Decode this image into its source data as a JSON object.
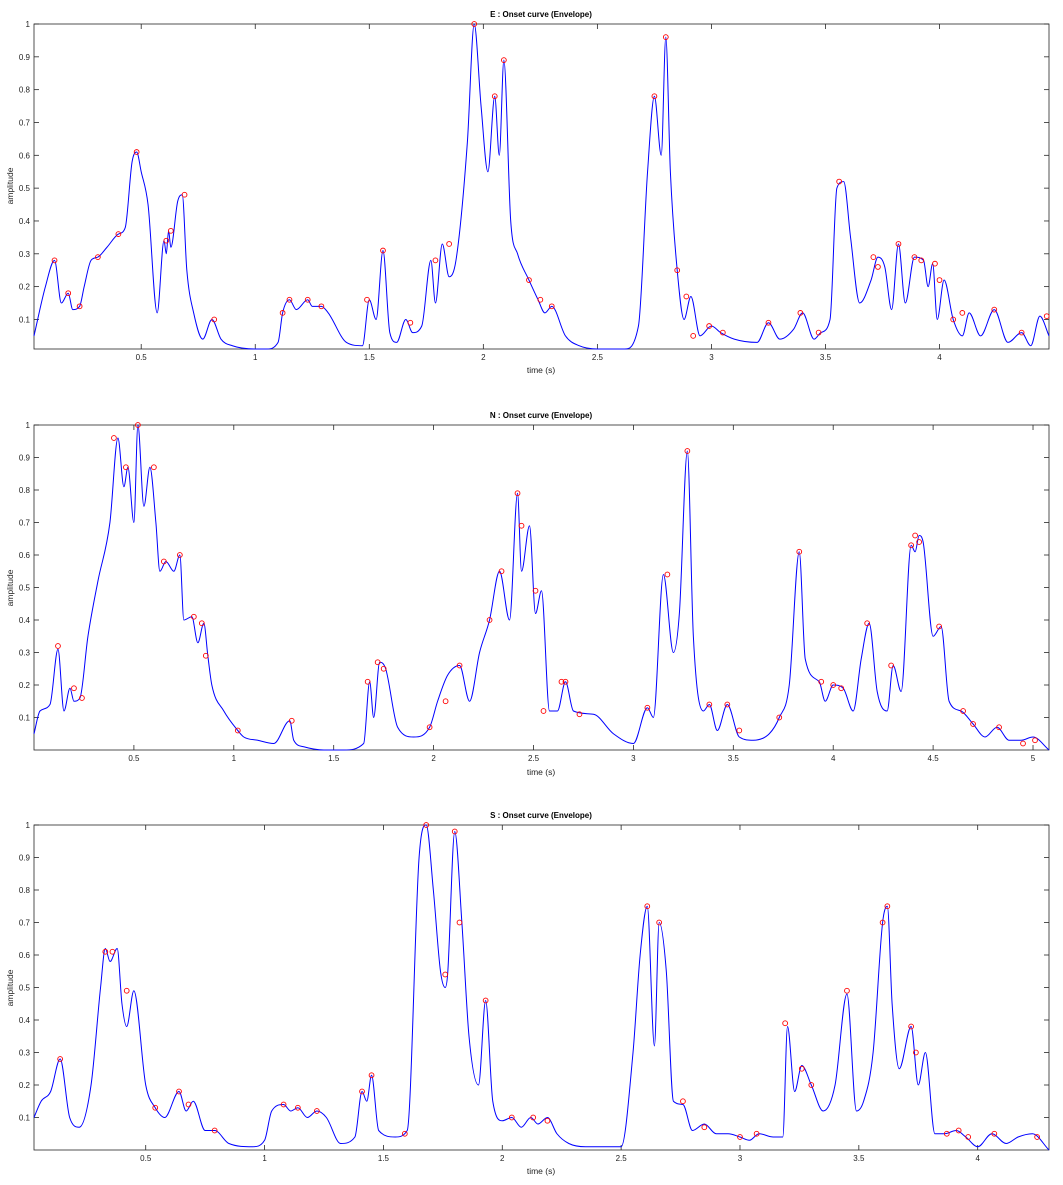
{
  "figure": {
    "background": "#ffffff",
    "line_color": "#0000ff",
    "marker_color": "#ff0000"
  },
  "chart_data": [
    {
      "type": "line",
      "title": "E : Onset curve (Envelope)",
      "xlabel": "time (s)",
      "ylabel": "amplitude",
      "xlim": [
        0.03,
        4.48
      ],
      "ylim": [
        0.01,
        1.0
      ],
      "xticks": [
        0.5,
        1,
        1.5,
        2,
        2.5,
        3,
        3.5,
        4
      ],
      "xticklabels": [
        "0.5",
        "1",
        "1.5",
        "2",
        "2.5",
        "3",
        "3.5",
        "4"
      ],
      "yticks": [
        0.1,
        0.2,
        0.3,
        0.4,
        0.5,
        0.6,
        0.7,
        0.8,
        0.9,
        1
      ],
      "yticklabels": [
        "0.1",
        "0.2",
        "0.3",
        "0.4",
        "0.5",
        "0.6",
        "0.7",
        "0.8",
        "0.9",
        "1"
      ],
      "grid": false,
      "series": [
        {
          "x": [
            0.03,
            0.08,
            0.12,
            0.15,
            0.18,
            0.2,
            0.23,
            0.25,
            0.28,
            0.31,
            0.35,
            0.4,
            0.43,
            0.46,
            0.48,
            0.5,
            0.53,
            0.57,
            0.6,
            0.61,
            0.62,
            0.63,
            0.66,
            0.68,
            0.7,
            0.73,
            0.77,
            0.81,
            0.85,
            0.9,
            1.0,
            1.05,
            1.1,
            1.12,
            1.15,
            1.18,
            1.23,
            1.25,
            1.29,
            1.32,
            1.4,
            1.47,
            1.5,
            1.53,
            1.56,
            1.59,
            1.62,
            1.66,
            1.69,
            1.73,
            1.77,
            1.79,
            1.82,
            1.85,
            1.88,
            1.93,
            1.96,
            1.99,
            2.02,
            2.05,
            2.07,
            2.09,
            2.12,
            2.15,
            2.2,
            2.24,
            2.27,
            2.3,
            2.36,
            2.42,
            2.5,
            2.62,
            2.68,
            2.72,
            2.75,
            2.78,
            2.8,
            2.82,
            2.85,
            2.88,
            2.91,
            2.95,
            3.0,
            3.04,
            3.1,
            3.2,
            3.25,
            3.3,
            3.36,
            3.4,
            3.45,
            3.48,
            3.52,
            3.55,
            3.58,
            3.61,
            3.65,
            3.7,
            3.73,
            3.76,
            3.79,
            3.82,
            3.85,
            3.89,
            3.93,
            3.95,
            3.97,
            3.99,
            4.02,
            4.06,
            4.1,
            4.13,
            4.18,
            4.24,
            4.3,
            4.36,
            4.4,
            4.44,
            4.48
          ],
          "y": [
            0.05,
            0.2,
            0.28,
            0.15,
            0.18,
            0.13,
            0.14,
            0.2,
            0.28,
            0.29,
            0.32,
            0.36,
            0.38,
            0.58,
            0.61,
            0.55,
            0.45,
            0.12,
            0.34,
            0.3,
            0.37,
            0.32,
            0.46,
            0.48,
            0.25,
            0.12,
            0.04,
            0.1,
            0.04,
            0.02,
            0.01,
            0.01,
            0.03,
            0.12,
            0.16,
            0.13,
            0.16,
            0.14,
            0.14,
            0.12,
            0.03,
            0.02,
            0.16,
            0.1,
            0.31,
            0.06,
            0.03,
            0.1,
            0.06,
            0.08,
            0.28,
            0.15,
            0.33,
            0.23,
            0.28,
            0.64,
            1.0,
            0.75,
            0.55,
            0.78,
            0.6,
            0.89,
            0.4,
            0.3,
            0.22,
            0.16,
            0.12,
            0.14,
            0.05,
            0.02,
            0.01,
            0.01,
            0.08,
            0.55,
            0.78,
            0.6,
            0.96,
            0.55,
            0.25,
            0.1,
            0.17,
            0.05,
            0.08,
            0.06,
            0.04,
            0.03,
            0.09,
            0.04,
            0.07,
            0.12,
            0.04,
            0.06,
            0.1,
            0.5,
            0.52,
            0.35,
            0.15,
            0.22,
            0.29,
            0.26,
            0.13,
            0.33,
            0.15,
            0.29,
            0.28,
            0.2,
            0.27,
            0.1,
            0.22,
            0.1,
            0.05,
            0.12,
            0.05,
            0.13,
            0.03,
            0.06,
            0.02,
            0.11,
            0.05
          ]
        }
      ],
      "peaks": {
        "x": [
          0.12,
          0.18,
          0.23,
          0.31,
          0.4,
          0.48,
          0.61,
          0.63,
          0.69,
          0.82,
          1.12,
          1.15,
          1.23,
          1.29,
          1.49,
          1.56,
          1.68,
          1.79,
          1.85,
          1.96,
          2.05,
          2.09,
          2.2,
          2.25,
          2.3,
          2.75,
          2.8,
          2.85,
          2.89,
          2.92,
          2.99,
          3.05,
          3.25,
          3.39,
          3.47,
          3.56,
          3.71,
          3.73,
          3.82,
          3.89,
          3.92,
          3.98,
          4.0,
          4.06,
          4.1,
          4.24,
          4.36,
          4.47
        ],
        "y": [
          0.28,
          0.18,
          0.14,
          0.29,
          0.36,
          0.61,
          0.34,
          0.37,
          0.48,
          0.1,
          0.12,
          0.16,
          0.16,
          0.14,
          0.16,
          0.31,
          0.09,
          0.28,
          0.33,
          1.0,
          0.78,
          0.89,
          0.22,
          0.16,
          0.14,
          0.78,
          0.96,
          0.25,
          0.17,
          0.05,
          0.08,
          0.06,
          0.09,
          0.12,
          0.06,
          0.52,
          0.29,
          0.26,
          0.33,
          0.29,
          0.28,
          0.27,
          0.22,
          0.1,
          0.12,
          0.13,
          0.06,
          0.11
        ]
      }
    },
    {
      "type": "line",
      "title": "N : Onset curve (Envelope)",
      "xlabel": "time (s)",
      "ylabel": "amplitude",
      "xlim": [
        0.0,
        5.08
      ],
      "ylim": [
        0.0,
        1.0
      ],
      "xticks": [
        0.5,
        1,
        1.5,
        2,
        2.5,
        3,
        3.5,
        4,
        4.5,
        5
      ],
      "xticklabels": [
        "0.5",
        "1",
        "1.5",
        "2",
        "2.5",
        "3",
        "3.5",
        "4",
        "4.5",
        "5"
      ],
      "yticks": [
        0.1,
        0.2,
        0.3,
        0.4,
        0.5,
        0.6,
        0.7,
        0.8,
        0.9,
        1
      ],
      "yticklabels": [
        "0.1",
        "0.2",
        "0.3",
        "0.4",
        "0.5",
        "0.6",
        "0.7",
        "0.8",
        "0.9",
        "1"
      ],
      "grid": false,
      "series": [
        {
          "x": [
            0.0,
            0.03,
            0.08,
            0.12,
            0.15,
            0.18,
            0.2,
            0.23,
            0.27,
            0.32,
            0.38,
            0.42,
            0.45,
            0.47,
            0.5,
            0.52,
            0.55,
            0.58,
            0.61,
            0.63,
            0.66,
            0.7,
            0.73,
            0.75,
            0.79,
            0.82,
            0.85,
            0.87,
            0.89,
            0.95,
            1.02,
            1.05,
            1.12,
            1.2,
            1.28,
            1.3,
            1.35,
            1.45,
            1.55,
            1.65,
            1.68,
            1.7,
            1.73,
            1.76,
            1.82,
            1.9,
            1.98,
            2.02,
            2.07,
            2.13,
            2.18,
            2.23,
            2.28,
            2.33,
            2.38,
            2.42,
            2.44,
            2.48,
            2.51,
            2.54,
            2.58,
            2.62,
            2.66,
            2.7,
            2.8,
            2.9,
            3.0,
            3.07,
            3.1,
            3.15,
            3.2,
            3.23,
            3.27,
            3.3,
            3.35,
            3.38,
            3.42,
            3.47,
            3.53,
            3.6,
            3.68,
            3.73,
            3.78,
            3.83,
            3.86,
            3.93,
            3.96,
            4.0,
            4.05,
            4.1,
            4.14,
            4.18,
            4.22,
            4.27,
            4.3,
            4.34,
            4.39,
            4.41,
            4.43,
            4.45,
            4.5,
            4.54,
            4.58,
            4.64,
            4.7,
            4.76,
            4.82,
            4.88,
            4.94,
            5.0,
            5.08
          ],
          "y": [
            0.05,
            0.12,
            0.14,
            0.31,
            0.12,
            0.19,
            0.15,
            0.16,
            0.35,
            0.52,
            0.7,
            0.96,
            0.81,
            0.87,
            0.7,
            1.0,
            0.75,
            0.87,
            0.7,
            0.55,
            0.58,
            0.55,
            0.6,
            0.4,
            0.41,
            0.33,
            0.39,
            0.29,
            0.2,
            0.12,
            0.06,
            0.04,
            0.03,
            0.02,
            0.09,
            0.03,
            0.01,
            0.0,
            0.0,
            0.02,
            0.21,
            0.1,
            0.27,
            0.25,
            0.07,
            0.04,
            0.07,
            0.15,
            0.23,
            0.26,
            0.15,
            0.3,
            0.4,
            0.55,
            0.4,
            0.79,
            0.55,
            0.69,
            0.42,
            0.49,
            0.12,
            0.12,
            0.21,
            0.12,
            0.11,
            0.05,
            0.02,
            0.13,
            0.1,
            0.54,
            0.3,
            0.42,
            0.92,
            0.35,
            0.12,
            0.14,
            0.06,
            0.14,
            0.04,
            0.03,
            0.05,
            0.1,
            0.2,
            0.61,
            0.28,
            0.21,
            0.15,
            0.2,
            0.19,
            0.12,
            0.28,
            0.39,
            0.18,
            0.12,
            0.26,
            0.18,
            0.63,
            0.61,
            0.66,
            0.64,
            0.35,
            0.38,
            0.15,
            0.12,
            0.08,
            0.04,
            0.07,
            0.03,
            0.03,
            0.04,
            0.0
          ]
        }
      ],
      "peaks": {
        "x": [
          0.12,
          0.2,
          0.24,
          0.4,
          0.46,
          0.52,
          0.6,
          0.65,
          0.73,
          0.8,
          0.84,
          0.86,
          1.02,
          1.29,
          1.67,
          1.72,
          1.75,
          1.98,
          2.06,
          2.13,
          2.28,
          2.34,
          2.42,
          2.44,
          2.51,
          2.55,
          2.64,
          2.66,
          2.73,
          3.07,
          3.17,
          3.27,
          3.38,
          3.47,
          3.53,
          3.73,
          3.83,
          3.94,
          4.0,
          4.04,
          4.17,
          4.29,
          4.39,
          4.41,
          4.43,
          4.53,
          4.65,
          4.7,
          4.83,
          4.95,
          5.01
        ],
        "y": [
          0.32,
          0.19,
          0.16,
          0.96,
          0.87,
          1.0,
          0.87,
          0.58,
          0.6,
          0.41,
          0.39,
          0.29,
          0.06,
          0.09,
          0.21,
          0.27,
          0.25,
          0.07,
          0.15,
          0.26,
          0.4,
          0.55,
          0.79,
          0.69,
          0.49,
          0.12,
          0.21,
          0.21,
          0.11,
          0.13,
          0.54,
          0.92,
          0.14,
          0.14,
          0.06,
          0.1,
          0.61,
          0.21,
          0.2,
          0.19,
          0.39,
          0.26,
          0.63,
          0.66,
          0.64,
          0.38,
          0.12,
          0.08,
          0.07,
          0.02,
          0.03
        ]
      }
    },
    {
      "type": "line",
      "title": "S : Onset curve (Envelope)",
      "xlabel": "time (s)",
      "ylabel": "amplitude",
      "xlim": [
        0.03,
        4.3
      ],
      "ylim": [
        0.0,
        1.0
      ],
      "xticks": [
        0.5,
        1,
        1.5,
        2,
        2.5,
        3,
        3.5,
        4
      ],
      "xticklabels": [
        "0.5",
        "1",
        "1.5",
        "2",
        "2.5",
        "3",
        "3.5",
        "4"
      ],
      "yticks": [
        0.1,
        0.2,
        0.3,
        0.4,
        0.5,
        0.6,
        0.7,
        0.8,
        0.9,
        1
      ],
      "yticklabels": [
        "0.1",
        "0.2",
        "0.3",
        "0.4",
        "0.5",
        "0.6",
        "0.7",
        "0.8",
        "0.9",
        "1"
      ],
      "grid": false,
      "series": [
        {
          "x": [
            0.03,
            0.06,
            0.1,
            0.14,
            0.18,
            0.22,
            0.27,
            0.31,
            0.33,
            0.35,
            0.38,
            0.4,
            0.42,
            0.45,
            0.5,
            0.54,
            0.58,
            0.64,
            0.67,
            0.7,
            0.75,
            0.79,
            0.85,
            0.95,
            1.0,
            1.03,
            1.08,
            1.11,
            1.14,
            1.18,
            1.22,
            1.26,
            1.32,
            1.38,
            1.41,
            1.43,
            1.45,
            1.48,
            1.55,
            1.6,
            1.65,
            1.68,
            1.71,
            1.74,
            1.76,
            1.77,
            1.8,
            1.83,
            1.86,
            1.9,
            1.93,
            1.96,
            2.0,
            2.04,
            2.08,
            2.12,
            2.15,
            2.19,
            2.23,
            2.28,
            2.35,
            2.5,
            2.55,
            2.58,
            2.61,
            2.64,
            2.66,
            2.69,
            2.72,
            2.76,
            2.8,
            2.85,
            2.9,
            2.95,
            3.0,
            3.04,
            3.08,
            3.14,
            3.18,
            3.2,
            3.23,
            3.26,
            3.3,
            3.35,
            3.4,
            3.45,
            3.49,
            3.52,
            3.56,
            3.6,
            3.62,
            3.64,
            3.67,
            3.72,
            3.75,
            3.78,
            3.82,
            3.86,
            3.91,
            3.95,
            4.0,
            4.06,
            4.12,
            4.17,
            4.23,
            4.3
          ],
          "y": [
            0.1,
            0.15,
            0.18,
            0.28,
            0.1,
            0.07,
            0.2,
            0.5,
            0.62,
            0.58,
            0.62,
            0.45,
            0.38,
            0.49,
            0.2,
            0.13,
            0.1,
            0.18,
            0.12,
            0.15,
            0.06,
            0.06,
            0.02,
            0.01,
            0.03,
            0.12,
            0.14,
            0.12,
            0.13,
            0.1,
            0.12,
            0.1,
            0.02,
            0.04,
            0.18,
            0.15,
            0.23,
            0.06,
            0.04,
            0.06,
            0.9,
            1.0,
            0.8,
            0.55,
            0.5,
            0.54,
            0.98,
            0.7,
            0.35,
            0.2,
            0.46,
            0.15,
            0.09,
            0.1,
            0.07,
            0.1,
            0.08,
            0.1,
            0.05,
            0.02,
            0.01,
            0.01,
            0.3,
            0.6,
            0.75,
            0.32,
            0.7,
            0.55,
            0.15,
            0.14,
            0.06,
            0.08,
            0.05,
            0.05,
            0.04,
            0.03,
            0.05,
            0.04,
            0.04,
            0.38,
            0.18,
            0.26,
            0.2,
            0.12,
            0.2,
            0.48,
            0.12,
            0.15,
            0.3,
            0.7,
            0.75,
            0.45,
            0.25,
            0.38,
            0.2,
            0.3,
            0.05,
            0.05,
            0.06,
            0.04,
            0.01,
            0.05,
            0.02,
            0.04,
            0.05,
            0.0
          ]
        }
      ],
      "peaks": {
        "x": [
          0.14,
          0.33,
          0.36,
          0.42,
          0.54,
          0.64,
          0.68,
          0.79,
          1.08,
          1.14,
          1.22,
          1.41,
          1.45,
          1.59,
          1.68,
          1.76,
          1.8,
          1.82,
          1.93,
          2.04,
          2.13,
          2.19,
          2.61,
          2.66,
          2.76,
          2.85,
          3.0,
          3.07,
          3.19,
          3.26,
          3.3,
          3.45,
          3.6,
          3.62,
          3.72,
          3.74,
          3.87,
          3.92,
          3.96,
          4.07,
          4.25
        ],
        "y": [
          0.28,
          0.61,
          0.61,
          0.49,
          0.13,
          0.18,
          0.14,
          0.06,
          0.14,
          0.13,
          0.12,
          0.18,
          0.23,
          0.05,
          1.0,
          0.54,
          0.98,
          0.7,
          0.46,
          0.1,
          0.1,
          0.09,
          0.75,
          0.7,
          0.15,
          0.07,
          0.04,
          0.05,
          0.39,
          0.25,
          0.2,
          0.49,
          0.7,
          0.75,
          0.38,
          0.3,
          0.05,
          0.06,
          0.04,
          0.05,
          0.04
        ]
      }
    }
  ]
}
